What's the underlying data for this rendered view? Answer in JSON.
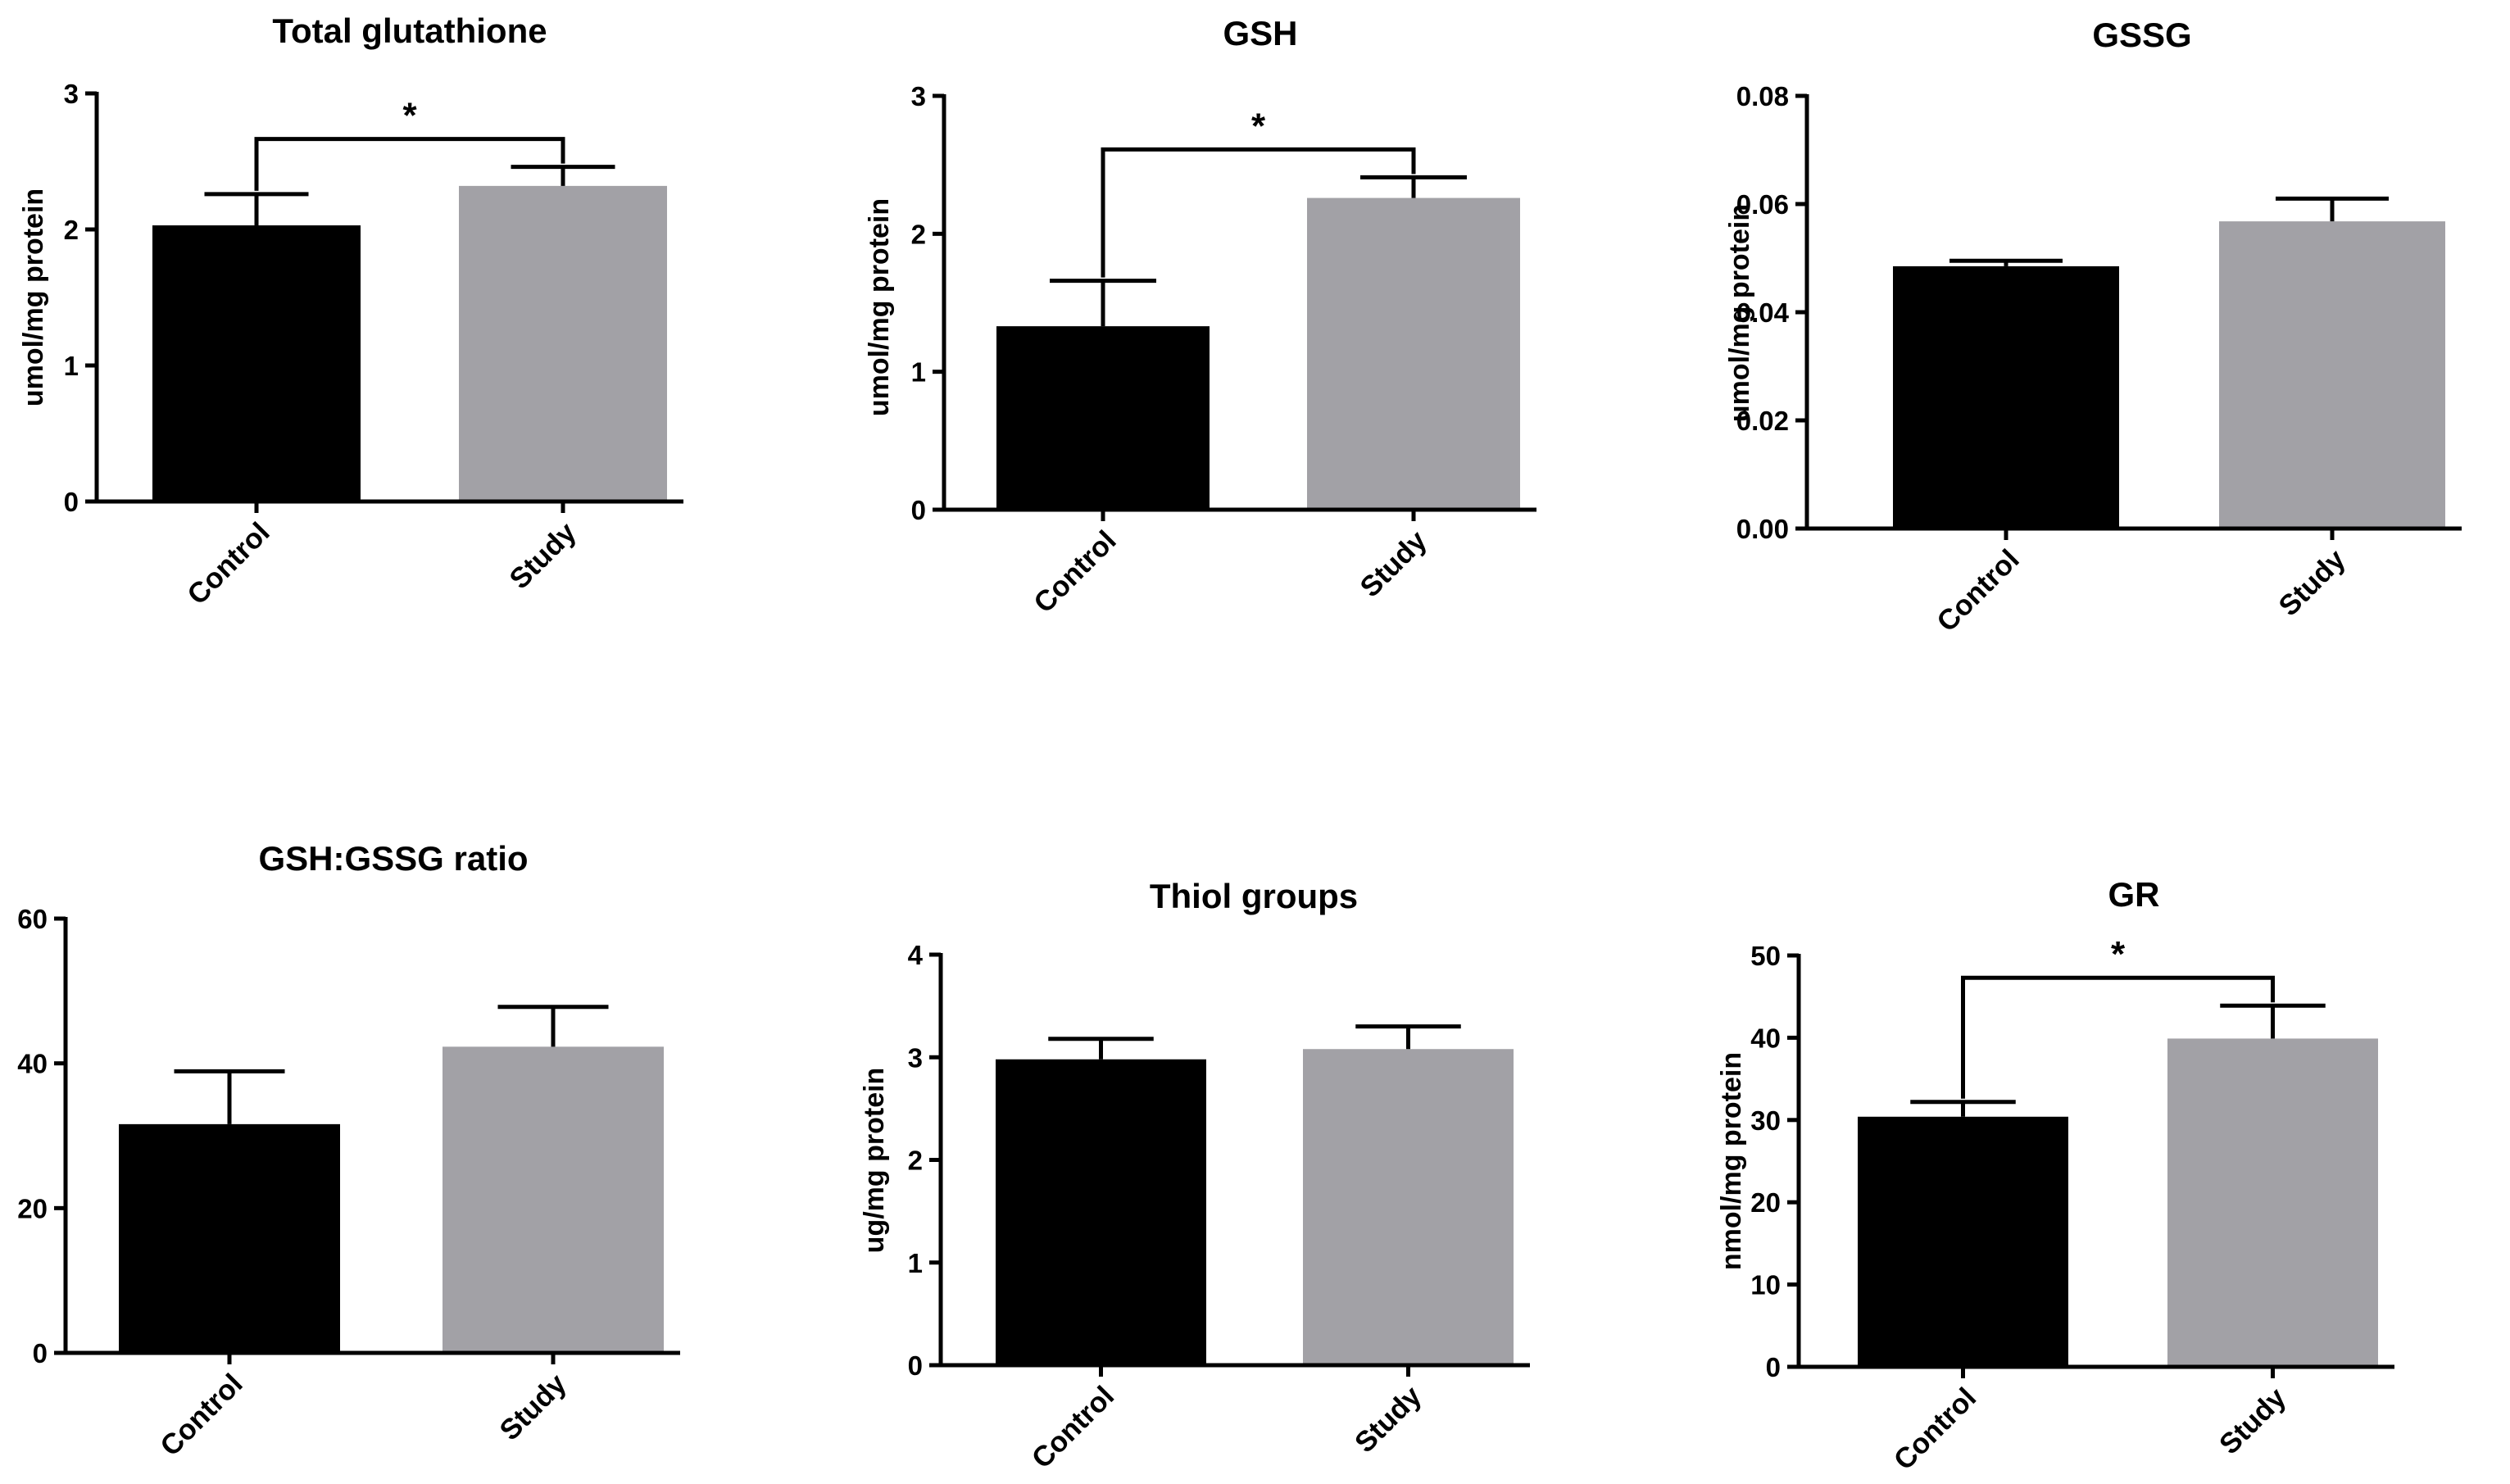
{
  "colors": {
    "control": "#000000",
    "study": "#a2a1a6",
    "axis": "#000000"
  },
  "chart_data": [
    {
      "id": "total-glutathione",
      "type": "bar",
      "title": "Total glutathione",
      "ylabel": "umol/mg protein",
      "categories": [
        "Control",
        "Study"
      ],
      "values": [
        2.03,
        2.32
      ],
      "errors": [
        0.23,
        0.14
      ],
      "ylim": [
        0,
        3
      ],
      "yticks": [
        0,
        1,
        2,
        3
      ],
      "ytick_labels": [
        "0",
        "1",
        "2",
        "3"
      ],
      "significance": "*"
    },
    {
      "id": "gsh",
      "type": "bar",
      "title": "GSH",
      "ylabel": "umol/mg protein",
      "categories": [
        "Control",
        "Study"
      ],
      "values": [
        1.33,
        2.26
      ],
      "errors": [
        0.33,
        0.15
      ],
      "ylim": [
        0,
        3
      ],
      "yticks": [
        0,
        1,
        2,
        3
      ],
      "ytick_labels": [
        "0",
        "1",
        "2",
        "3"
      ],
      "significance": "*"
    },
    {
      "id": "gssg",
      "type": "bar",
      "title": "GSSG",
      "ylabel": "umol/mg protein",
      "categories": [
        "Control",
        "Study"
      ],
      "values": [
        0.0485,
        0.0568
      ],
      "errors": [
        0.001,
        0.0042
      ],
      "ylim": [
        0,
        0.08
      ],
      "yticks": [
        0,
        0.02,
        0.04,
        0.06,
        0.08
      ],
      "ytick_labels": [
        "0.00",
        "0.02",
        "0.04",
        "0.06",
        "0.08"
      ],
      "significance": ""
    },
    {
      "id": "gsh-gssg-ratio",
      "type": "bar",
      "title": "GSH:GSSG ratio",
      "ylabel": "",
      "categories": [
        "Control",
        "Study"
      ],
      "values": [
        31.6,
        42.3
      ],
      "errors": [
        7.3,
        5.5
      ],
      "ylim": [
        0,
        60
      ],
      "yticks": [
        0,
        20,
        40,
        60
      ],
      "ytick_labels": [
        "0",
        "20",
        "40",
        "60"
      ],
      "significance": ""
    },
    {
      "id": "thiol-groups",
      "type": "bar",
      "title": "Thiol groups",
      "ylabel": "ug/mg protein",
      "categories": [
        "Control",
        "Study"
      ],
      "values": [
        2.98,
        3.08
      ],
      "errors": [
        0.2,
        0.22
      ],
      "ylim": [
        0,
        4
      ],
      "yticks": [
        0,
        1,
        2,
        3,
        4
      ],
      "ytick_labels": [
        "0",
        "1",
        "2",
        "3",
        "4"
      ],
      "significance": ""
    },
    {
      "id": "gr",
      "type": "bar",
      "title": "GR",
      "ylabel": "nmol/mg protein",
      "categories": [
        "Control",
        "Study"
      ],
      "values": [
        30.4,
        39.9
      ],
      "errors": [
        1.8,
        4.0
      ],
      "ylim": [
        0,
        50
      ],
      "yticks": [
        0,
        10,
        20,
        30,
        40,
        50
      ],
      "ytick_labels": [
        "0",
        "10",
        "20",
        "30",
        "40",
        "50"
      ],
      "significance": "*"
    }
  ]
}
